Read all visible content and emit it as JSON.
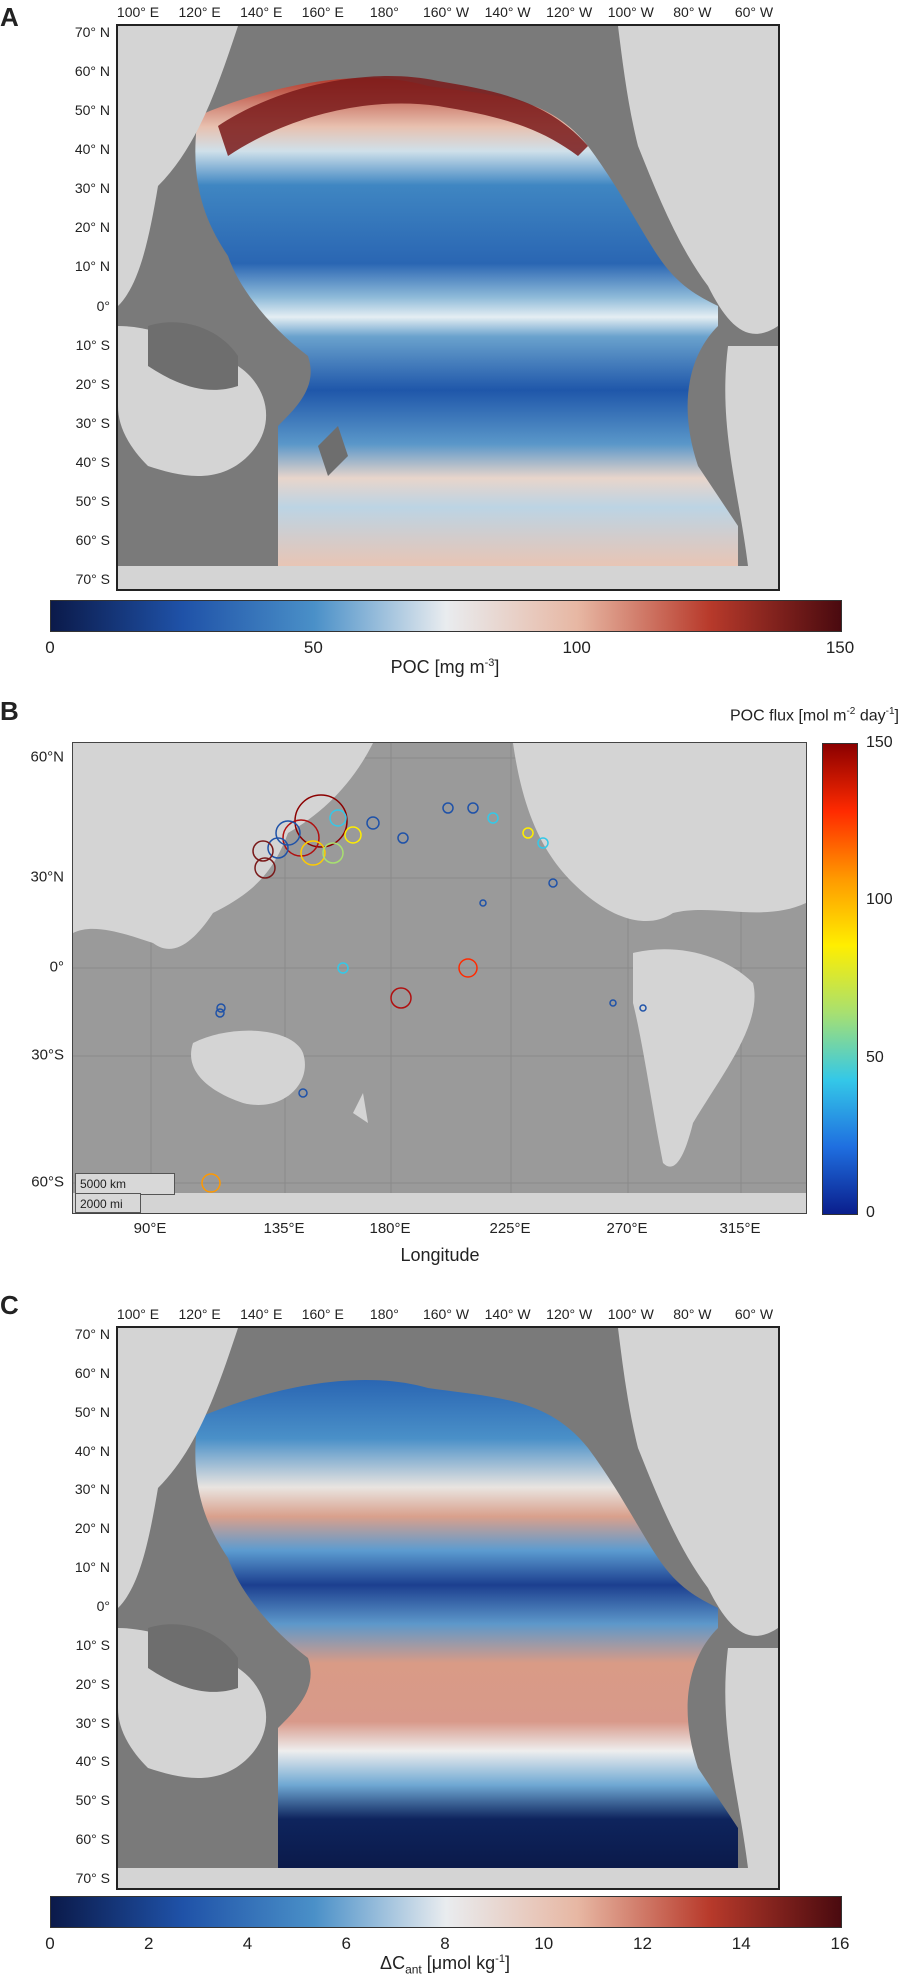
{
  "panels": {
    "a": {
      "letter": "A",
      "lon_ticks": [
        "100° E",
        "120° E",
        "140° E",
        "160° E",
        "180°",
        "160° W",
        "140° W",
        "120° W",
        "100° W",
        "80° W",
        "60° W"
      ],
      "lat_ticks": [
        "70° N",
        "60° N",
        "50° N",
        "40° N",
        "30° N",
        "20° N",
        "10° N",
        "0°",
        "10° S",
        "20° S",
        "30° S",
        "40° S",
        "50° S",
        "60° S",
        "70° S"
      ],
      "colorbar": {
        "ticks": [
          "0",
          "50",
          "100",
          "150"
        ],
        "label_main": "POC [mg m",
        "label_sup": "-3",
        "label_end": "]",
        "range": [
          0,
          150
        ],
        "colors": [
          "#0b1a4a",
          "#1f52a8",
          "#4a90c8",
          "#e9ecef",
          "#e7b7a3",
          "#b83a2b",
          "#4a0a0f"
        ]
      }
    },
    "b": {
      "letter": "B",
      "lat_ticks": [
        "60°N",
        "30°N",
        "0°",
        "30°S",
        "60°S"
      ],
      "lon_ticks": [
        "90°E",
        "135°E",
        "180°E",
        "225°E",
        "270°E",
        "315°E"
      ],
      "xlabel": "Longitude",
      "scale_km": "5000 km",
      "scale_mi": "2000 mi",
      "colorbar": {
        "title_main": "POC flux [mol m",
        "title_sup1": "-2",
        "title_mid": " day",
        "title_sup2": "-1",
        "title_end": "]",
        "ticks": [
          "150",
          "100",
          "50",
          "0"
        ],
        "range": [
          0,
          150
        ],
        "colors": [
          "#8b0000",
          "#ff2a00",
          "#ff9900",
          "#ffee00",
          "#a8e070",
          "#34c8e8",
          "#1f6fe0",
          "#0a1e8c"
        ]
      }
    },
    "c": {
      "letter": "C",
      "lon_ticks": [
        "100° E",
        "120° E",
        "140° E",
        "160° E",
        "180°",
        "160° W",
        "140° W",
        "120° W",
        "100° W",
        "80° W",
        "60° W"
      ],
      "lat_ticks": [
        "70° N",
        "60° N",
        "50° N",
        "40° N",
        "30° N",
        "20° N",
        "10° N",
        "0°",
        "10° S",
        "20° S",
        "30° S",
        "40° S",
        "50° S",
        "60° S",
        "70° S"
      ],
      "colorbar": {
        "ticks": [
          "0",
          "2",
          "4",
          "6",
          "8",
          "10",
          "12",
          "14",
          "16"
        ],
        "label_main": "ΔC",
        "label_sub": "ant",
        "label_end": " [μmol kg",
        "label_sup": "-1",
        "label_close": "]",
        "range": [
          0,
          16
        ],
        "colors": [
          "#0b1a4a",
          "#1f52a8",
          "#4a90c8",
          "#e9ecef",
          "#e7b7a3",
          "#b83a2b",
          "#4a0a0f"
        ]
      }
    }
  },
  "colors": {
    "ocean_grey": "#7a7a7a",
    "land_light": "#d4d4d4",
    "map_b_ocean": "#9a9a9a"
  }
}
